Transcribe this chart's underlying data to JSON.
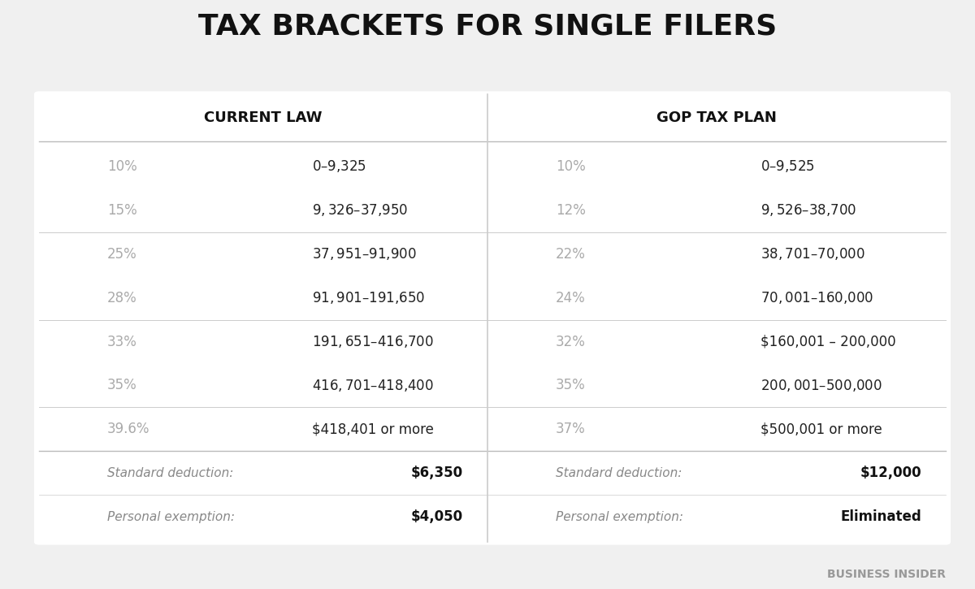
{
  "title": "TAX BRACKETS FOR SINGLE FILERS",
  "bg_color": "#f0f0f0",
  "table_bg": "#ffffff",
  "title_color": "#111111",
  "header_left": "CURRENT LAW",
  "header_right": "GOP TAX PLAN",
  "header_color": "#111111",
  "rate_color": "#aaaaaa",
  "range_color": "#222222",
  "footer_label_color": "#888888",
  "footer_value_color": "#111111",
  "divider_color": "#cccccc",
  "current_law": [
    {
      "rate": "10%",
      "range": "$0 – $9,325"
    },
    {
      "rate": "15%",
      "range": "$9,326 – $37,950"
    },
    {
      "rate": "25%",
      "range": "$37,951 – $91,900"
    },
    {
      "rate": "28%",
      "range": "$91,901 – $191,650"
    },
    {
      "rate": "33%",
      "range": "$191,651 – $416,700"
    },
    {
      "rate": "35%",
      "range": "$416,701 – $418,400"
    },
    {
      "rate": "39.6%",
      "range": "$418,401 or more"
    }
  ],
  "gop_plan": [
    {
      "rate": "10%",
      "range": "$0 – $9,525"
    },
    {
      "rate": "12%",
      "range": "$9,526 – $38,700"
    },
    {
      "rate": "22%",
      "range": "$38,701 – $70,000"
    },
    {
      "rate": "24%",
      "range": "$70,001 – $160,000"
    },
    {
      "rate": "32%",
      "range": "$160,001 – 200,000"
    },
    {
      "rate": "35%",
      "range": "$200,001 – $500,000"
    },
    {
      "rate": "37%",
      "range": "$500,001 or more"
    }
  ],
  "footer_current": [
    {
      "label": "Standard deduction:",
      "value": "$6,350"
    },
    {
      "label": "Personal exemption:",
      "value": "$4,050"
    }
  ],
  "footer_gop": [
    {
      "label": "Standard deduction:",
      "value": "$12,000"
    },
    {
      "label": "Personal exemption:",
      "value": "Eliminated"
    }
  ],
  "watermark": "BUSINESS INSIDER",
  "group_dividers": [
    1,
    3,
    5
  ],
  "last_row_divider": 6
}
